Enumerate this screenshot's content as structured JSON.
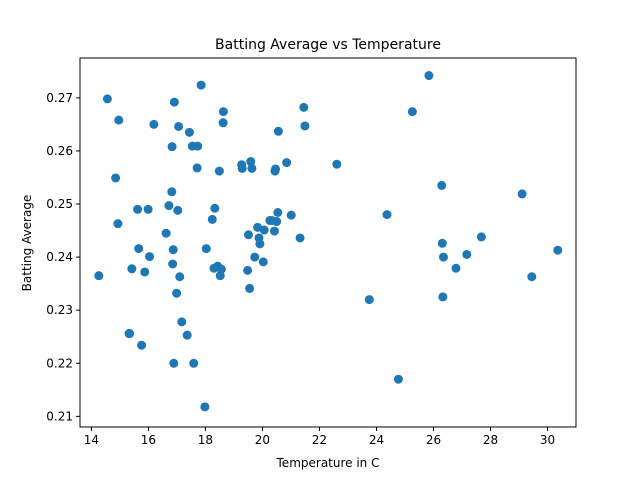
{
  "chart_data": {
    "type": "scatter",
    "title": "Batting Average vs Temperature",
    "xlabel": "Temperature in C",
    "ylabel": "Batting Average",
    "xlim": [
      13.6,
      31.0
    ],
    "ylim": [
      0.208,
      0.2775
    ],
    "xticks": [
      14,
      16,
      18,
      20,
      22,
      24,
      26,
      28,
      30
    ],
    "yticks": [
      0.21,
      0.22,
      0.23,
      0.24,
      0.25,
      0.26,
      0.27
    ],
    "grid": false,
    "marker_color": "#1f77b4",
    "x": [
      14.26,
      14.56,
      14.85,
      14.93,
      14.96,
      15.32,
      15.34,
      15.42,
      15.62,
      15.66,
      15.76,
      15.87,
      15.99,
      16.04,
      16.19,
      16.62,
      16.72,
      16.82,
      16.83,
      16.85,
      16.87,
      16.89,
      16.91,
      16.99,
      17.03,
      17.06,
      17.1,
      17.17,
      17.36,
      17.44,
      17.54,
      17.59,
      17.71,
      17.73,
      17.85,
      17.98,
      18.03,
      18.24,
      18.3,
      18.33,
      18.43,
      18.49,
      18.52,
      18.56,
      18.62,
      18.63,
      19.27,
      19.29,
      19.48,
      19.51,
      19.55,
      19.59,
      19.63,
      19.73,
      19.83,
      19.88,
      19.91,
      20.03,
      20.06,
      20.26,
      20.33,
      20.42,
      20.44,
      20.46,
      20.5,
      20.54,
      20.56,
      20.85,
      21.01,
      21.32,
      21.45,
      21.49,
      22.61,
      23.75,
      24.37,
      24.77,
      25.26,
      25.84,
      26.29,
      26.31,
      26.33,
      26.35,
      26.79,
      27.17,
      27.68,
      29.11,
      29.45,
      30.36
    ],
    "y": [
      0.2365,
      0.2698,
      0.2549,
      0.2463,
      0.2658,
      0.2256,
      0.2256,
      0.2378,
      0.249,
      0.2416,
      0.2234,
      0.2372,
      0.249,
      0.2401,
      0.265,
      0.2445,
      0.2497,
      0.2523,
      0.2608,
      0.2387,
      0.2414,
      0.22,
      0.2692,
      0.2332,
      0.2488,
      0.2646,
      0.2363,
      0.2278,
      0.2253,
      0.2635,
      0.2609,
      0.22,
      0.2568,
      0.2609,
      0.2724,
      0.2118,
      0.2416,
      0.2471,
      0.2379,
      0.2492,
      0.2383,
      0.2562,
      0.2365,
      0.2377,
      0.2653,
      0.2674,
      0.2574,
      0.2567,
      0.2375,
      0.2442,
      0.2341,
      0.258,
      0.2567,
      0.24,
      0.2456,
      0.2436,
      0.2425,
      0.2391,
      0.2451,
      0.2469,
      0.2469,
      0.2449,
      0.2562,
      0.2566,
      0.2467,
      0.2484,
      0.2637,
      0.2578,
      0.2479,
      0.2436,
      0.2682,
      0.2647,
      0.2575,
      0.232,
      0.248,
      0.217,
      0.2674,
      0.2742,
      0.2535,
      0.2426,
      0.2325,
      0.24,
      0.2379,
      0.2405,
      0.2438,
      0.2519,
      0.2363,
      0.2413
    ]
  }
}
